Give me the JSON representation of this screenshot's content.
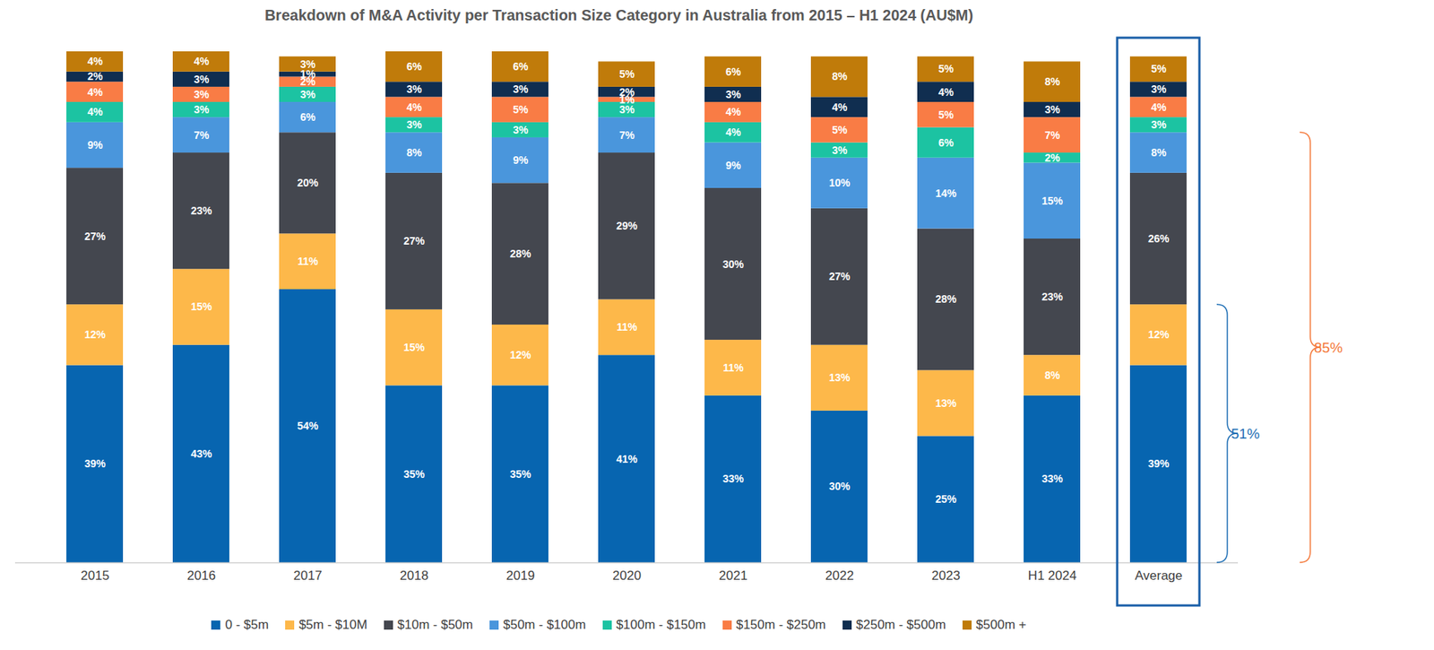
{
  "chart_data": {
    "type": "bar",
    "title": "Breakdown of M&A Activity per Transaction Size Category in Australia from 2015 – H1 2024 (AU$M)",
    "categories": [
      "2015",
      "2016",
      "2017",
      "2018",
      "2019",
      "2020",
      "2021",
      "2022",
      "2023",
      "H1 2024",
      "Average"
    ],
    "stacked": true,
    "data_labels": true,
    "tick_labels": "x",
    "legend": "bottom",
    "ylim": [
      0,
      101
    ],
    "yticks": [],
    "series": [
      {
        "name": "0 - $5m",
        "color": "#0765b0",
        "values": [
          39,
          43,
          54,
          35,
          35,
          41,
          33,
          30,
          25,
          33,
          39
        ],
        "value_labels": [
          "39%",
          "43%",
          "54%",
          "35%",
          "35%",
          "41%",
          "33%",
          "30%",
          "25%",
          "33%",
          "39%"
        ]
      },
      {
        "name": "$5m - $10M",
        "color": "#fdb84a",
        "values": [
          12,
          15,
          11,
          15,
          12,
          11,
          11,
          13,
          13,
          8,
          12
        ],
        "value_labels": [
          "12%",
          "15%",
          "11%",
          "15%",
          "12%",
          "11%",
          "11%",
          "13%",
          "13%",
          "8%",
          "12%"
        ]
      },
      {
        "name": "$10m - $50m",
        "color": "#44474f",
        "values": [
          27,
          23,
          20,
          27,
          28,
          29,
          30,
          27,
          28,
          23,
          26
        ],
        "value_labels": [
          "27%",
          "23%",
          "20%",
          "27%",
          "28%",
          "29%",
          "30%",
          "27%",
          "28%",
          "23%",
          "26%"
        ]
      },
      {
        "name": "$50m - $100m",
        "color": "#4a96dc",
        "values": [
          9,
          7,
          6,
          8,
          9,
          7,
          9,
          10,
          14,
          15,
          8
        ],
        "value_labels": [
          "9%",
          "7%",
          "6%",
          "8%",
          "9%",
          "7%",
          "9%",
          "10%",
          "14%",
          "15%",
          "8%"
        ]
      },
      {
        "name": "$100m - $150m",
        "color": "#1cc3a2",
        "values": [
          4,
          3,
          3,
          3,
          3,
          3,
          4,
          3,
          6,
          2,
          3
        ],
        "value_labels": [
          "4%",
          "3%",
          "3%",
          "3%",
          "3%",
          "3%",
          "4%",
          "3%",
          "6%",
          "2%",
          "3%"
        ]
      },
      {
        "name": "$150m - $250m",
        "color": "#f97c45",
        "values": [
          4,
          3,
          2,
          4,
          5,
          1,
          4,
          5,
          5,
          7,
          4
        ],
        "value_labels": [
          "4%",
          "3%",
          "2%",
          "4%",
          "5%",
          "1%",
          "4%",
          "5%",
          "5%",
          "7%",
          "4%"
        ]
      },
      {
        "name": "$250m - $500m",
        "color": "#102e50",
        "values": [
          2,
          3,
          1,
          3,
          3,
          2,
          3,
          4,
          4,
          3,
          3
        ],
        "value_labels": [
          "2%",
          "3%",
          "1%",
          "3%",
          "3%",
          "2%",
          "3%",
          "4%",
          "4%",
          "3%",
          "3%"
        ]
      },
      {
        "name": "$500m +",
        "color": "#c07b0a",
        "values": [
          4,
          4,
          3,
          6,
          6,
          5,
          6,
          8,
          5,
          8,
          5
        ],
        "value_labels": [
          "4%",
          "4%",
          "3%",
          "6%",
          "6%",
          "5%",
          "6%",
          "8%",
          "5%",
          "8%",
          "5%"
        ]
      }
    ],
    "annotations": [
      {
        "type": "box",
        "category": "Average",
        "color": "#1a5fa8"
      },
      {
        "type": "bracket",
        "text": "85%",
        "value": 85,
        "color": "#f4793b"
      },
      {
        "type": "bracket",
        "text": "51%",
        "value": 51,
        "color": "#1f6fb5"
      }
    ]
  }
}
